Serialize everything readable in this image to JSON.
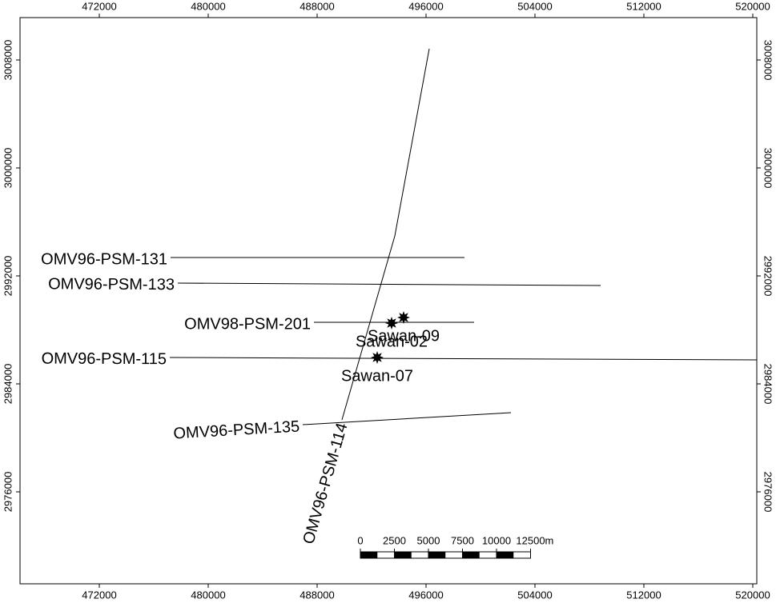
{
  "map": {
    "xlim": [
      466176,
      520294
    ],
    "ylim": [
      2969185,
      3011141
    ],
    "xticks": [
      472000,
      480000,
      488000,
      496000,
      504000,
      512000,
      520000
    ],
    "yticks": [
      2976000,
      2984000,
      2992000,
      3000000,
      3008000
    ],
    "lines": [
      {
        "name": "OMV96-PSM-114",
        "x": [
          489824,
          493706,
          496235
        ],
        "y": [
          2981333,
          2994963,
          3008830
        ]
      },
      {
        "name": "OMV96-PSM-131",
        "x": [
          477235,
          498824
        ],
        "y": [
          2993363,
          2993363
        ]
      },
      {
        "name": "OMV96-PSM-133",
        "x": [
          477765,
          508824
        ],
        "y": [
          2991467,
          2991289
        ]
      },
      {
        "name": "OMV98-PSM-201",
        "x": [
          487765,
          499529
        ],
        "y": [
          2988563,
          2988563
        ]
      },
      {
        "name": "OMV96-PSM-115",
        "x": [
          477176,
          520294
        ],
        "y": [
          2985956,
          2985778
        ]
      },
      {
        "name": "OMV96-PSM-135",
        "x": [
          486941,
          502235
        ],
        "y": [
          2980978,
          2981867
        ]
      }
    ],
    "wells": [
      {
        "name": "Sawan-09",
        "x": 494353,
        "y": 2988919
      },
      {
        "name": "Sawan-02",
        "x": 493471,
        "y": 2988504
      },
      {
        "name": "Sawan-07",
        "x": 492412,
        "y": 2985956
      }
    ],
    "scale_bar": {
      "ticks": [
        0,
        2500,
        5000,
        7500,
        10000,
        12500
      ],
      "unit": "m"
    }
  }
}
